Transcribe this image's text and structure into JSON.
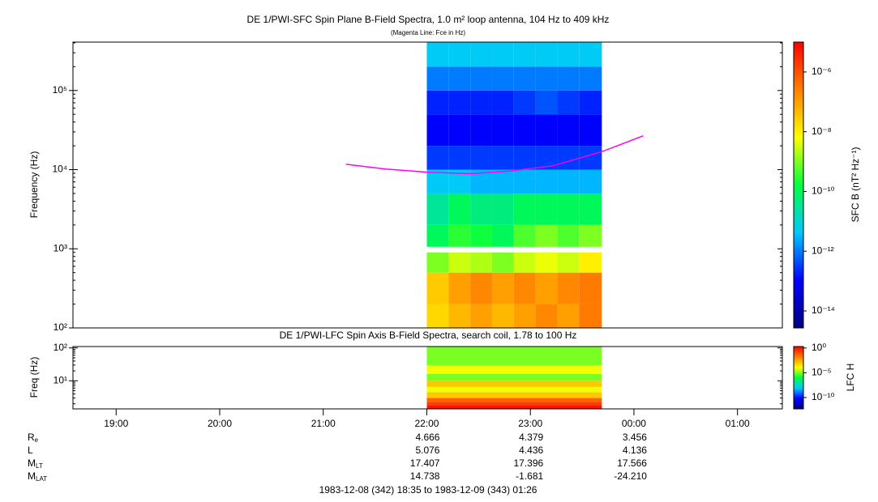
{
  "chart_data": [
    {
      "type": "spectrogram",
      "title": "DE 1/PWI-SFC  Spin Plane B-Field Spectra, 1.0 m² loop antenna, 104 Hz to 409 kHz",
      "subtitle": "(Magenta Line: Fce in Hz)",
      "y_label": "Frequency (Hz)",
      "colorbar_label": "SFC B (nT² Hz⁻¹)",
      "log_y": true,
      "log_z": true,
      "colormap": [
        "#00007f",
        "#0000ff",
        "#00c8ff",
        "#00ff40",
        "#ffff00",
        "#ff8000",
        "#ff0000"
      ],
      "xlim": [
        18.583,
        25.433
      ],
      "ylim": [
        100,
        409000
      ],
      "yticks": [
        {
          "value": 100,
          "label": "10²"
        },
        {
          "value": 1000,
          "label": "10³"
        },
        {
          "value": 10000,
          "label": "10⁴"
        },
        {
          "value": 100000,
          "label": "10⁵"
        }
      ],
      "zlim": [
        2.7e-15,
        1e-05
      ],
      "zticks": [
        {
          "value": 1e-14,
          "label": "10⁻¹⁴"
        },
        {
          "value": 1e-12,
          "label": "10⁻¹²"
        },
        {
          "value": 1e-10,
          "label": "10⁻¹⁰"
        },
        {
          "value": 1e-08,
          "label": "10⁻⁸"
        },
        {
          "value": 1e-06,
          "label": "10⁻⁶"
        }
      ],
      "x_edges": [
        22.0,
        22.21,
        22.42,
        22.63,
        22.84,
        23.05,
        23.26,
        23.47,
        23.69
      ],
      "y_edges": [
        100,
        200,
        500,
        900,
        1060,
        2000,
        5000,
        10000,
        20000,
        50000,
        100000,
        200000,
        409000
      ],
      "values": [
        [
          2e-08,
          5e-08,
          1e-07,
          5e-08,
          1e-07,
          2e-07,
          1e-07,
          3e-07
        ],
        [
          3e-08,
          1e-07,
          2e-07,
          1e-07,
          2e-07,
          1e-07,
          2e-07,
          3e-07
        ],
        [
          1e-09,
          3e-09,
          2e-09,
          1e-09,
          3e-09,
          5e-09,
          3e-09,
          1e-08
        ],
        [
          null,
          null,
          null,
          null,
          null,
          null,
          null,
          null
        ],
        [
          1e-10,
          3e-10,
          2e-10,
          1e-10,
          5e-10,
          1e-09,
          5e-10,
          1e-09
        ],
        [
          3e-11,
          1e-10,
          5e-11,
          5e-11,
          1e-10,
          1e-10,
          1e-10,
          1e-10
        ],
        [
          5e-12,
          5e-12,
          3e-12,
          3e-12,
          3e-12,
          3e-12,
          3e-12,
          3e-12
        ],
        [
          3e-13,
          3e-13,
          3e-13,
          3e-13,
          3e-13,
          3e-13,
          3e-13,
          3e-13
        ],
        [
          1e-13,
          1e-13,
          1e-13,
          1e-13,
          1e-13,
          1e-13,
          1e-13,
          1e-13
        ],
        [
          2e-13,
          2e-13,
          2e-13,
          2e-13,
          3e-13,
          5e-13,
          3e-13,
          2e-13
        ],
        [
          1e-12,
          1e-12,
          1e-12,
          1e-12,
          1e-12,
          1e-12,
          1e-12,
          1e-12
        ],
        [
          5e-12,
          5e-12,
          5e-12,
          5e-12,
          5e-12,
          5e-12,
          5e-12,
          5e-12
        ]
      ],
      "overlay": {
        "color": "#ff00ff",
        "x": [
          21.22,
          21.6,
          22.0,
          22.43,
          22.8,
          23.22,
          23.69,
          24.09
        ],
        "values": [
          11700,
          10200,
          9300,
          8900,
          9600,
          11200,
          16900,
          26800
        ]
      }
    },
    {
      "type": "spectrogram",
      "title": "DE 1/PWI-LFC  Spin Axis B-Field Spectra, search coil, 1.78 to 100 Hz",
      "y_label": "Freq (Hz)",
      "colorbar_label": "LFC H",
      "log_y": true,
      "log_z": true,
      "colormap": [
        "#00007f",
        "#0000ff",
        "#00c8ff",
        "#00ff40",
        "#ffff00",
        "#ff8000",
        "#ff0000"
      ],
      "xlim": [
        18.583,
        25.433
      ],
      "xticks": [
        {
          "value": 19,
          "label": "19:00"
        },
        {
          "value": 20,
          "label": "20:00"
        },
        {
          "value": 21,
          "label": "21:00"
        },
        {
          "value": 22,
          "label": "22:00"
        },
        {
          "value": 23,
          "label": "23:00"
        },
        {
          "value": 24,
          "label": "00:00"
        },
        {
          "value": 25,
          "label": "01:00"
        }
      ],
      "ylim": [
        1.4,
        110
      ],
      "yticks": [
        {
          "value": 10,
          "label": "10¹"
        },
        {
          "value": 100,
          "label": "10²"
        }
      ],
      "zlim": [
        5e-13,
        2
      ],
      "zticks": [
        {
          "value": 1,
          "label": "10⁰"
        },
        {
          "value": 1e-05,
          "label": "10⁻⁵"
        },
        {
          "value": 1e-10,
          "label": "10⁻¹⁰"
        }
      ],
      "x_edges": [
        22.0,
        23.69
      ],
      "y_edges": [
        1.4,
        1.8,
        2.3,
        3,
        4.5,
        6.5,
        10,
        16,
        30,
        110
      ],
      "values": [
        [
          1
        ],
        [
          0.2
        ],
        [
          0.05
        ],
        [
          0.001
        ],
        [
          0.0001
        ],
        [
          0.001
        ],
        [
          1e-05
        ],
        [
          0.0001
        ],
        [
          1e-05
        ]
      ]
    }
  ],
  "ephemeris": {
    "x": [
      22,
      23,
      24
    ],
    "rows": [
      {
        "label": "R",
        "sub": "e",
        "values": [
          "4.666",
          "4.379",
          "3.456"
        ]
      },
      {
        "label": "L",
        "values": [
          "5.076",
          "4.436",
          "4.136"
        ]
      },
      {
        "label": "M",
        "sub": "LT",
        "values": [
          "17.407",
          "17.396",
          "17.566"
        ]
      },
      {
        "label": "M",
        "sub": "LAT",
        "values": [
          "14.738",
          "-1.681",
          "-24.210"
        ]
      }
    ]
  },
  "footer": "1983-12-08 (342) 18:35 to 1983-12-09 (343) 01:26"
}
